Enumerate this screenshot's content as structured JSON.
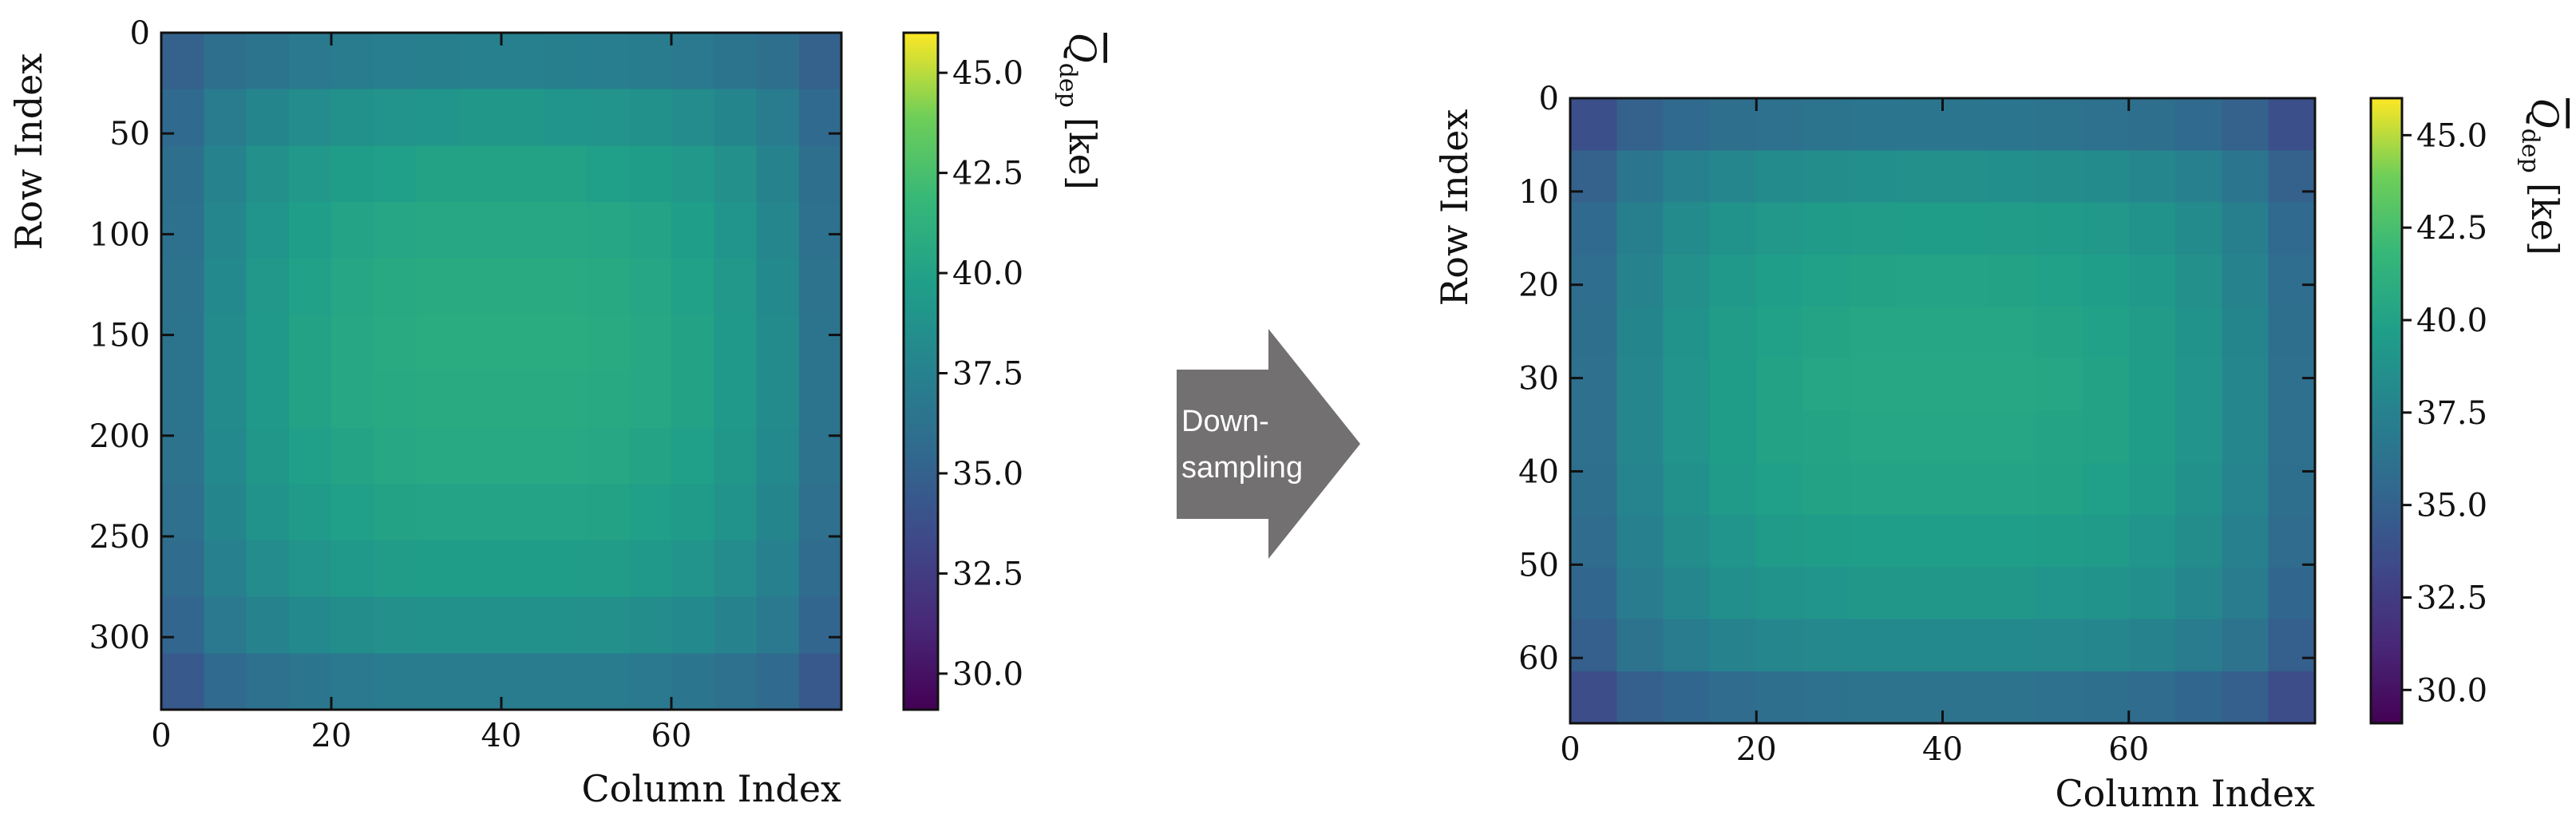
{
  "chart_data": [
    {
      "type": "heatmap",
      "xlabel": "Column Index",
      "ylabel": "Row Index",
      "colorbar_label": {
        "symbol": "Q",
        "subscript": "dep",
        "unit": "[ke]"
      },
      "xlim": [
        0,
        80
      ],
      "ylim": [
        336,
        0
      ],
      "xticks": [
        0,
        20,
        40,
        60
      ],
      "yticks": [
        0,
        50,
        100,
        150,
        200,
        250,
        300
      ],
      "clim": [
        29.1,
        46.0
      ],
      "cticks": [
        {
          "value": 30,
          "label": "30.0"
        },
        32.5,
        {
          "value": 35,
          "label": "35.0"
        },
        37.5,
        {
          "value": 40,
          "label": "40.0"
        },
        42.5,
        {
          "value": 45,
          "label": "45.0"
        }
      ],
      "colormap": "viridis",
      "values": [
        [
          35.0,
          36.0,
          36.4,
          36.8,
          37.0,
          37.2,
          37.3,
          37.4,
          37.4,
          37.3,
          37.2,
          37.0,
          36.8,
          36.4,
          36.0,
          35.0
        ],
        [
          35.6,
          37.0,
          37.8,
          38.3,
          38.7,
          38.9,
          39.0,
          39.1,
          39.1,
          39.0,
          38.9,
          38.7,
          38.3,
          37.8,
          37.0,
          35.6
        ],
        [
          36.0,
          37.6,
          38.6,
          39.2,
          39.6,
          39.8,
          40.0,
          40.0,
          40.0,
          40.0,
          39.8,
          39.6,
          39.2,
          38.6,
          37.6,
          36.0
        ],
        [
          36.2,
          37.9,
          39.0,
          39.7,
          40.1,
          40.3,
          40.4,
          40.4,
          40.4,
          40.4,
          40.3,
          40.1,
          39.7,
          39.0,
          37.9,
          36.2
        ],
        [
          36.3,
          38.1,
          39.2,
          39.9,
          40.3,
          40.6,
          40.7,
          40.7,
          40.7,
          40.7,
          40.6,
          40.3,
          39.9,
          39.2,
          38.1,
          36.3
        ],
        [
          36.4,
          38.2,
          39.3,
          40.0,
          40.4,
          40.7,
          40.8,
          40.8,
          40.8,
          40.8,
          40.7,
          40.4,
          40.0,
          39.3,
          38.2,
          36.4
        ],
        [
          36.4,
          38.2,
          39.3,
          40.0,
          40.4,
          40.6,
          40.7,
          40.7,
          40.7,
          40.7,
          40.6,
          40.4,
          40.0,
          39.3,
          38.2,
          36.4
        ],
        [
          36.3,
          38.1,
          39.1,
          39.8,
          40.2,
          40.4,
          40.5,
          40.5,
          40.5,
          40.5,
          40.4,
          40.2,
          39.8,
          39.1,
          38.1,
          36.3
        ],
        [
          36.1,
          37.8,
          38.8,
          39.4,
          39.8,
          40.0,
          40.1,
          40.1,
          40.1,
          40.1,
          40.0,
          39.8,
          39.4,
          38.8,
          37.8,
          36.1
        ],
        [
          35.8,
          37.4,
          38.3,
          38.9,
          39.3,
          39.5,
          39.6,
          39.6,
          39.6,
          39.6,
          39.5,
          39.3,
          38.9,
          38.3,
          37.4,
          35.8
        ],
        [
          35.3,
          36.8,
          37.6,
          38.1,
          38.4,
          38.6,
          38.7,
          38.7,
          38.7,
          38.7,
          38.6,
          38.4,
          38.1,
          37.6,
          36.8,
          35.3
        ],
        [
          34.4,
          35.6,
          36.2,
          36.6,
          36.8,
          37.0,
          37.1,
          37.1,
          37.1,
          37.1,
          37.0,
          36.8,
          36.6,
          36.2,
          35.6,
          34.4
        ]
      ]
    },
    {
      "type": "heatmap",
      "xlabel": "Column Index",
      "ylabel": "Row Index",
      "colorbar_label": {
        "symbol": "Q",
        "subscript": "dep",
        "unit": "[ke]"
      },
      "xlim": [
        0,
        80
      ],
      "ylim": [
        67,
        0
      ],
      "xticks": [
        0,
        20,
        40,
        60
      ],
      "yticks": [
        0,
        10,
        20,
        30,
        40,
        50,
        60
      ],
      "clim": [
        29.1,
        46.0
      ],
      "cticks": [
        {
          "value": 30,
          "label": "30.0"
        },
        32.5,
        {
          "value": 35,
          "label": "35.0"
        },
        37.5,
        {
          "value": 40,
          "label": "40.0"
        },
        42.5,
        {
          "value": 45,
          "label": "45.0"
        }
      ],
      "colormap": "viridis",
      "values": [
        [
          33.8,
          35.0,
          35.6,
          36.0,
          36.2,
          36.4,
          36.5,
          36.6,
          36.6,
          36.5,
          36.4,
          36.2,
          36.0,
          35.6,
          35.0,
          33.8
        ],
        [
          35.0,
          36.6,
          37.4,
          37.9,
          38.2,
          38.4,
          38.5,
          38.6,
          38.6,
          38.5,
          38.4,
          38.2,
          37.9,
          37.4,
          36.6,
          35.0
        ],
        [
          35.6,
          37.3,
          38.2,
          38.8,
          39.2,
          39.4,
          39.5,
          39.6,
          39.6,
          39.5,
          39.4,
          39.2,
          38.8,
          38.2,
          37.3,
          35.6
        ],
        [
          35.9,
          37.6,
          38.6,
          39.3,
          39.7,
          39.9,
          40.0,
          40.1,
          40.1,
          40.0,
          39.9,
          39.7,
          39.3,
          38.6,
          37.6,
          35.9
        ],
        [
          36.0,
          37.8,
          38.8,
          39.5,
          39.9,
          40.2,
          40.3,
          40.3,
          40.3,
          40.3,
          40.2,
          39.9,
          39.5,
          38.8,
          37.8,
          36.0
        ],
        [
          36.1,
          37.9,
          38.9,
          39.6,
          40.0,
          40.3,
          40.4,
          40.4,
          40.4,
          40.4,
          40.3,
          40.0,
          39.6,
          38.9,
          37.9,
          36.1
        ],
        [
          36.1,
          37.9,
          38.9,
          39.6,
          40.0,
          40.2,
          40.3,
          40.3,
          40.3,
          40.3,
          40.2,
          40.0,
          39.6,
          38.9,
          37.9,
          36.1
        ],
        [
          36.0,
          37.7,
          38.7,
          39.4,
          39.8,
          40.0,
          40.1,
          40.1,
          40.1,
          40.1,
          40.0,
          39.8,
          39.4,
          38.7,
          37.7,
          36.0
        ],
        [
          35.8,
          37.4,
          38.4,
          39.0,
          39.4,
          39.6,
          39.7,
          39.7,
          39.7,
          39.7,
          39.6,
          39.4,
          39.0,
          38.4,
          37.4,
          35.8
        ],
        [
          35.4,
          37.0,
          37.9,
          38.5,
          38.8,
          39.0,
          39.1,
          39.1,
          39.1,
          39.1,
          39.0,
          38.8,
          38.5,
          37.9,
          37.0,
          35.4
        ],
        [
          34.8,
          36.3,
          37.1,
          37.6,
          37.9,
          38.0,
          38.1,
          38.1,
          38.1,
          38.1,
          38.0,
          37.9,
          37.6,
          37.1,
          36.3,
          34.8
        ],
        [
          33.6,
          34.8,
          35.4,
          35.8,
          36.0,
          36.2,
          36.3,
          36.3,
          36.3,
          36.3,
          36.2,
          36.0,
          35.8,
          35.4,
          34.8,
          33.6
        ]
      ]
    }
  ],
  "arrow_label": [
    "Down-",
    "sampling"
  ]
}
